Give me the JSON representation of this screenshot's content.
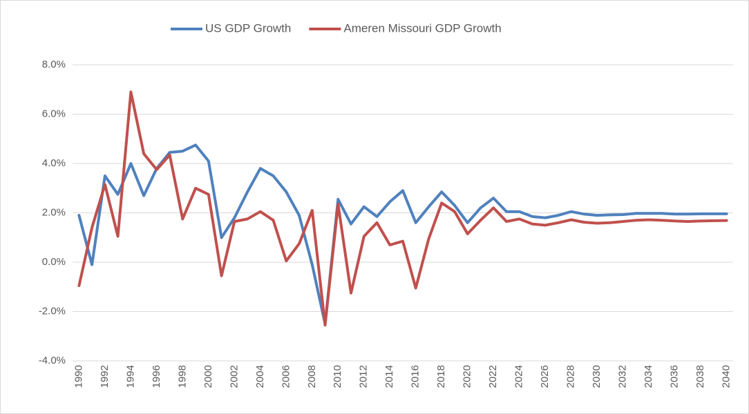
{
  "chart_data": {
    "type": "line",
    "categories": [
      "1990",
      null,
      "1992",
      null,
      "1994",
      null,
      "1996",
      null,
      "1998",
      null,
      "2000",
      null,
      "2002",
      null,
      "2004",
      null,
      "2006",
      null,
      "2008",
      null,
      "2010",
      null,
      "2012",
      null,
      "2014",
      null,
      "2016",
      null,
      "2018",
      null,
      "2020",
      null,
      "2022",
      null,
      "2024",
      null,
      "2026",
      null,
      "2028",
      null,
      "2030",
      null,
      "2032",
      null,
      "2034",
      null,
      "2036",
      null,
      "2038",
      null,
      "2040"
    ],
    "series": [
      {
        "name": "US GDP Growth",
        "color": "#4f81bd",
        "values": [
          1.9,
          -0.1,
          3.5,
          2.75,
          4.0,
          2.7,
          3.8,
          4.45,
          4.5,
          4.75,
          4.1,
          1.0,
          1.8,
          2.85,
          3.8,
          3.5,
          2.85,
          1.9,
          -0.1,
          -2.5,
          2.55,
          1.55,
          2.25,
          1.85,
          2.45,
          2.9,
          1.6,
          2.25,
          2.85,
          2.3,
          1.6,
          2.2,
          2.6,
          2.05,
          2.05,
          1.85,
          1.8,
          1.9,
          2.05,
          1.95,
          1.9,
          1.92,
          1.93,
          1.98,
          1.98,
          1.98,
          1.95,
          1.95,
          1.96,
          1.96,
          1.96
        ]
      },
      {
        "name": "Ameren Missouri GDP Growth",
        "color": "#c0504d",
        "values": [
          -0.95,
          1.4,
          3.15,
          1.05,
          6.9,
          4.4,
          3.75,
          4.35,
          1.75,
          3.0,
          2.75,
          -0.55,
          1.65,
          1.75,
          2.05,
          1.7,
          0.05,
          0.75,
          2.1,
          -2.55,
          2.35,
          -1.25,
          1.05,
          1.6,
          0.7,
          0.85,
          -1.05,
          0.95,
          2.4,
          2.05,
          1.15,
          1.7,
          2.2,
          1.65,
          1.75,
          1.55,
          1.5,
          1.6,
          1.72,
          1.62,
          1.58,
          1.6,
          1.65,
          1.7,
          1.72,
          1.7,
          1.67,
          1.65,
          1.67,
          1.68,
          1.69
        ]
      }
    ],
    "ylim": [
      -4,
      8
    ],
    "yticks": [
      {
        "value": -4,
        "label": "-4.0%"
      },
      {
        "value": -2,
        "label": "-2.0%"
      },
      {
        "value": 0,
        "label": "0.0%"
      },
      {
        "value": 2,
        "label": "2.0%"
      },
      {
        "value": 4,
        "label": "4.0%"
      },
      {
        "value": 6,
        "label": "6.0%"
      },
      {
        "value": 8,
        "label": "8.0%"
      }
    ],
    "grid": true,
    "legend": "top"
  }
}
